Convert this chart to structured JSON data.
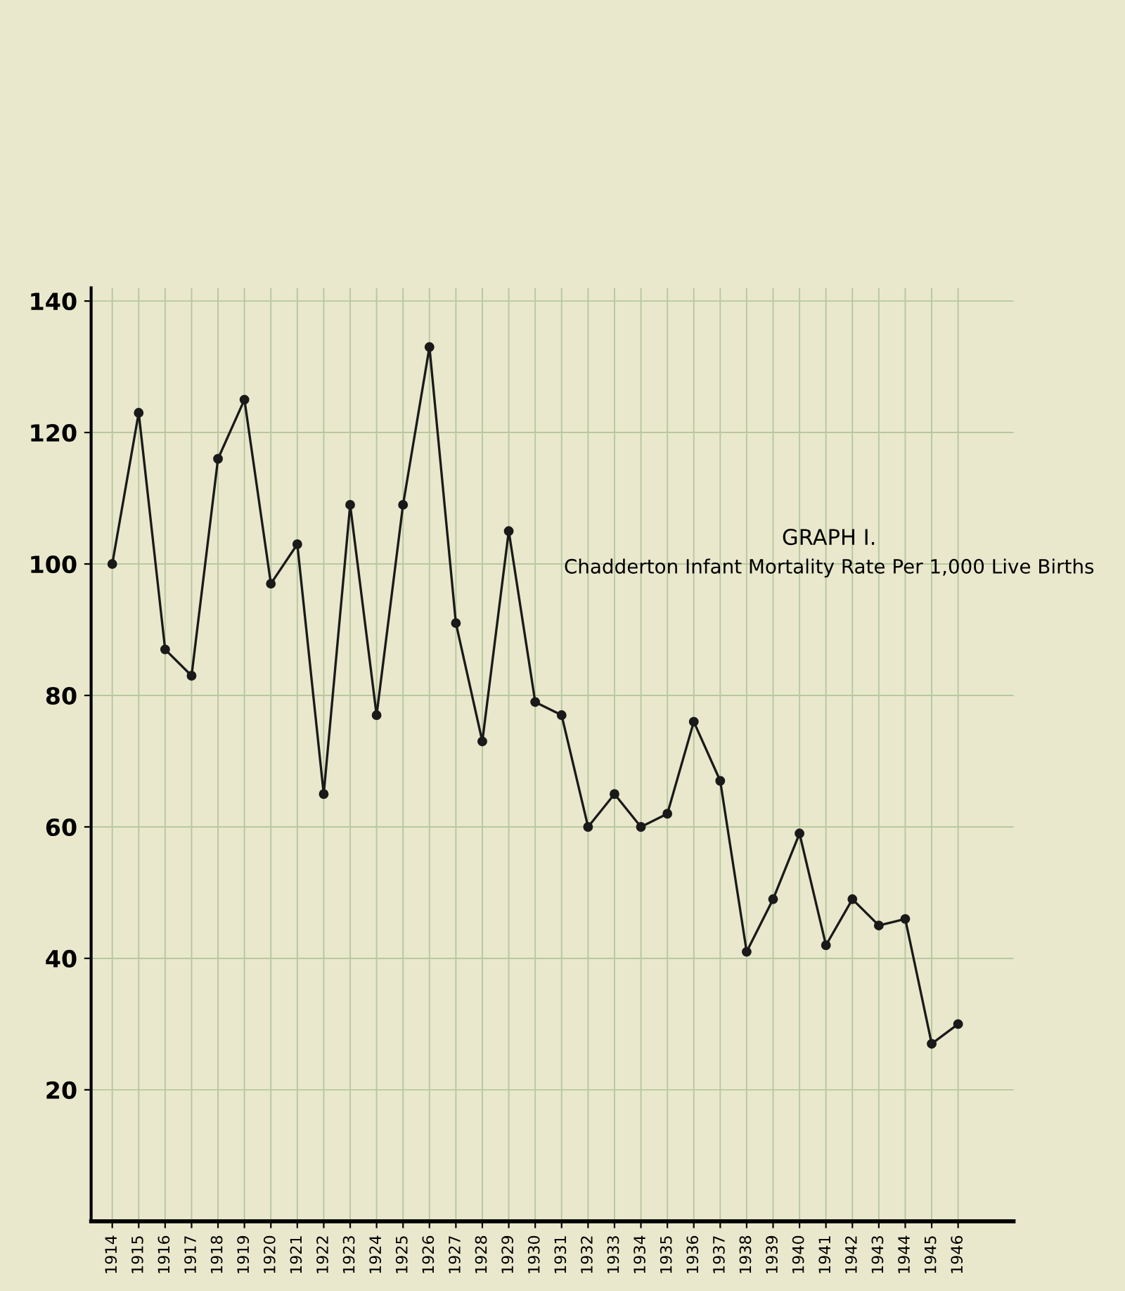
{
  "chart_data": {
    "type": "line",
    "title": "GRAPH I.",
    "subtitle": "Chadderton Infant Mortality Rate Per 1,000 Live Births",
    "categories": [
      "1914",
      "1915",
      "1916",
      "1917",
      "1918",
      "1919",
      "1920",
      "1921",
      "1922",
      "1923",
      "1924",
      "1925",
      "1926",
      "1927",
      "1928",
      "1929",
      "1930",
      "1931",
      "1932",
      "1933",
      "1934",
      "1935",
      "1936",
      "1937",
      "1938",
      "1939",
      "1940",
      "1941",
      "1942",
      "1943",
      "1944",
      "1945",
      "1946"
    ],
    "series": [
      {
        "color": "#1a1a1a",
        "values": [
          100,
          123,
          87,
          83,
          116,
          125,
          97,
          103,
          65,
          109,
          77,
          109,
          133,
          91,
          73,
          105,
          79,
          77,
          60,
          65,
          60,
          62,
          76,
          67,
          41,
          49,
          59,
          42,
          49,
          45,
          46,
          27,
          30
        ]
      }
    ],
    "ylim": [
      0,
      142
    ],
    "yticks": [
      20,
      40,
      60,
      80,
      100,
      120,
      140
    ],
    "grid": true,
    "marker": "circle",
    "line_style": "solid"
  }
}
